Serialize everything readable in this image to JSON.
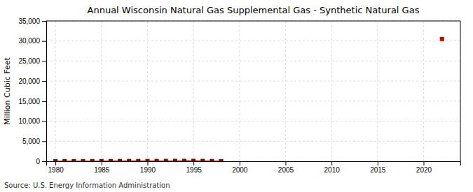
{
  "chart_data": {
    "type": "line",
    "title": "Annual Wisconsin Natural Gas Supplemental Gas - Synthetic Natural Gas",
    "y_label": "Million Cubic Feet",
    "annotations": [
      "Source: U.S. Energy Information Administration"
    ],
    "xlim": [
      1979,
      2024
    ],
    "xticks": [
      1980,
      1985,
      1990,
      1995,
      2000,
      2005,
      2010,
      2015,
      2020
    ],
    "ylim": [
      0,
      35000
    ],
    "yticks": [
      0,
      {
        "value": 5000,
        "label": "5,000"
      },
      {
        "value": 10000,
        "label": "10,000"
      },
      {
        "value": 15000,
        "label": "15,000"
      },
      {
        "value": 20000,
        "label": "20,000"
      },
      {
        "value": 25000,
        "label": "25,000"
      },
      {
        "value": 30000,
        "label": "30,000"
      },
      {
        "value": 35000,
        "label": "35,000"
      }
    ],
    "grid": true,
    "series": [
      {
        "color": "#8b0000",
        "marker": "square",
        "line_style": "solid",
        "x": [
          1980,
          1981,
          1982,
          1983,
          1984,
          1985,
          1986,
          1987,
          1988,
          1989,
          1990,
          1991,
          1992,
          1993,
          1994,
          1995,
          1996,
          1997,
          1998
        ],
        "values": [
          20,
          30,
          25,
          30,
          35,
          45,
          50,
          55,
          60,
          58,
          65,
          68,
          75,
          85,
          95,
          105,
          85,
          55,
          18
        ]
      },
      {
        "color": "#cc0000",
        "marker": "square",
        "line_style": "none",
        "x": [
          2022
        ],
        "values": [
          30500
        ]
      }
    ]
  }
}
